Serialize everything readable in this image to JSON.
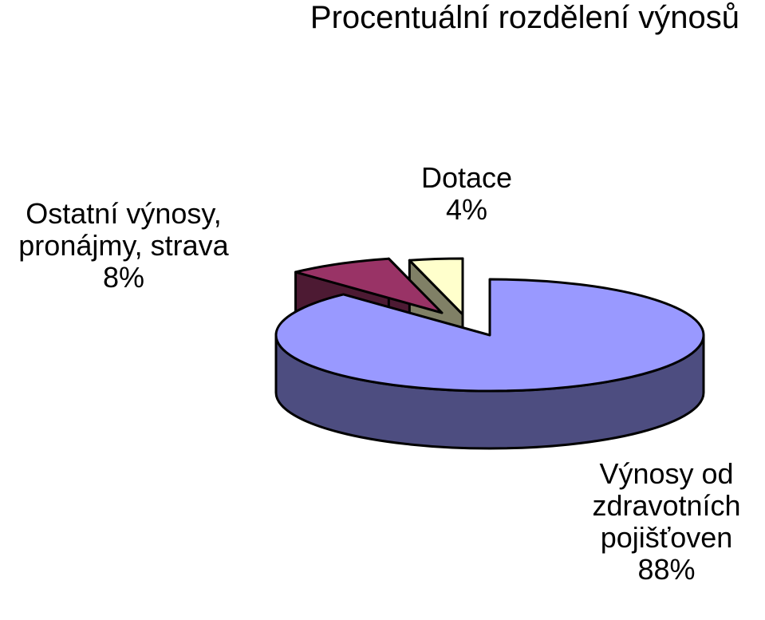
{
  "chart_data": {
    "type": "pie",
    "title": "Procentuální rozdělení výnosů",
    "slices": [
      {
        "label": "Výnosy od zdravotních pojišťoven",
        "value": 88,
        "display": "88%",
        "color": "#9999ff",
        "side_color": "#4d4d80"
      },
      {
        "label": "Ostatní výnosy, pronájmy, strava",
        "value": 8,
        "display": "8%",
        "color": "#993366",
        "side_color": "#4d1a33"
      },
      {
        "label": "Dotace",
        "value": 4,
        "display": "4%",
        "color": "#ffffcc",
        "side_color": "#808066"
      }
    ]
  },
  "labels": {
    "other_lines": [
      "Ostatní výnosy,",
      "pronájmy, strava"
    ],
    "subsidy_lines": [
      "Dotace"
    ],
    "insurance_lines": [
      "Výnosy od",
      "zdravotních",
      "pojišťoven"
    ]
  }
}
